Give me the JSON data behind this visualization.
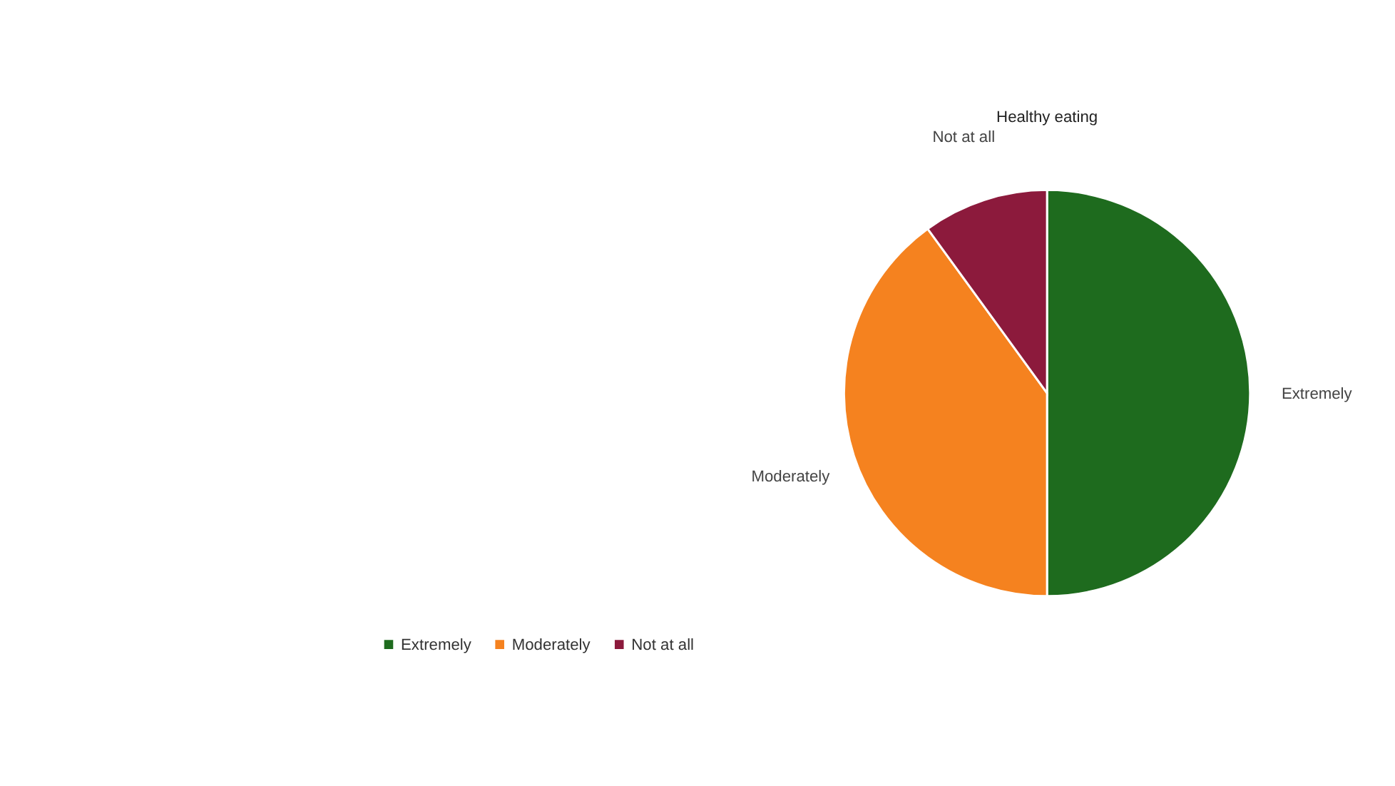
{
  "chart_data": {
    "type": "pie",
    "title": "Healthy eating",
    "categories": [
      "Extremely",
      "Moderately",
      "Not at all"
    ],
    "values": [
      50,
      40,
      10
    ],
    "colors": [
      "#1e6b1e",
      "#f5821f",
      "#8c1a3c"
    ],
    "legend": "bottom left"
  }
}
